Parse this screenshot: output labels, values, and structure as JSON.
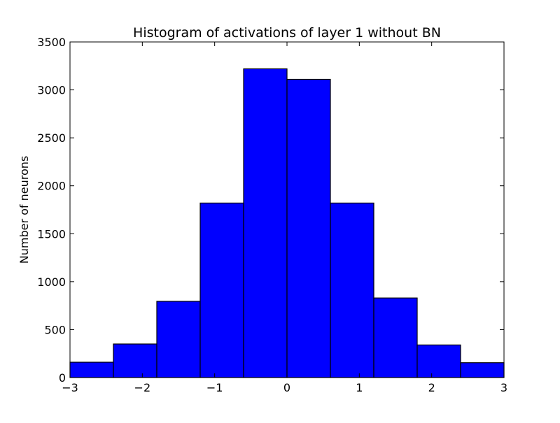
{
  "chart_data": {
    "type": "bar",
    "title": "Histogram of activations of layer 1  without BN",
    "xlabel": "",
    "ylabel": "Number of neurons",
    "xlim": [
      -3,
      3
    ],
    "ylim": [
      0,
      3500
    ],
    "grid": false,
    "bar_color": "#0000ff",
    "edge_color": "#000000",
    "bin_edges": [
      -3,
      -2.4,
      -1.8,
      -1.2,
      -0.6,
      0,
      0.6,
      1.2,
      1.8,
      2.4,
      3
    ],
    "values": [
      160,
      350,
      795,
      1820,
      3220,
      3110,
      1820,
      830,
      340,
      155
    ],
    "x_ticks": [
      -3,
      -2,
      -1,
      0,
      1,
      2,
      3
    ],
    "x_tick_labels": [
      "−3",
      "−2",
      "−1",
      "0",
      "1",
      "2",
      "3"
    ],
    "y_ticks": [
      0,
      500,
      1000,
      1500,
      2000,
      2500,
      3000,
      3500
    ],
    "y_tick_labels": [
      "0",
      "500",
      "1000",
      "1500",
      "2000",
      "2500",
      "3000",
      "3500"
    ]
  }
}
